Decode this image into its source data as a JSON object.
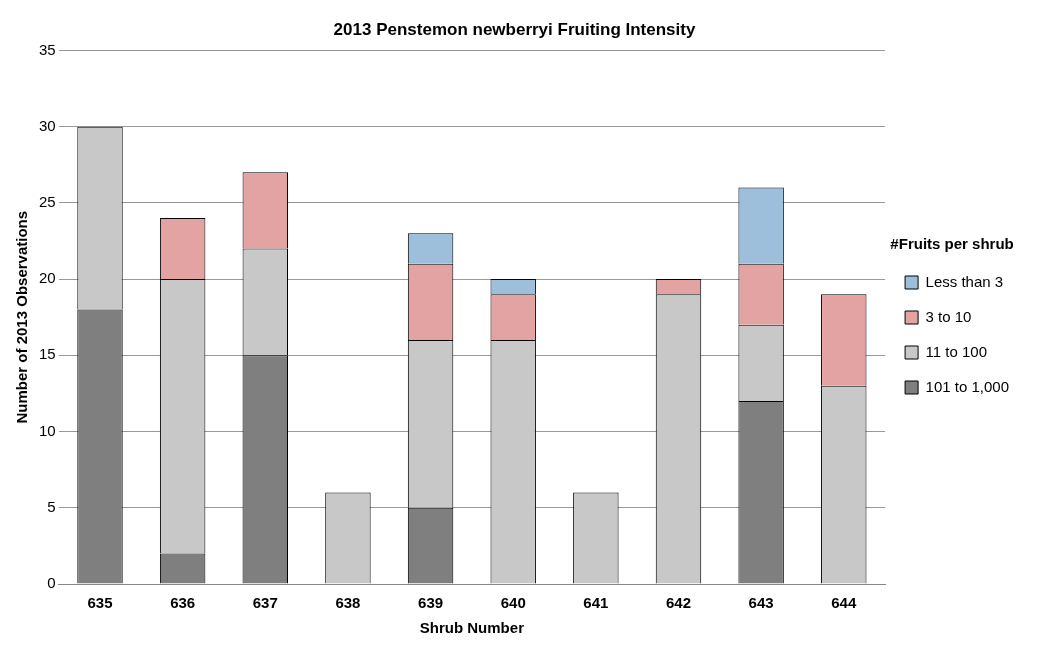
{
  "chart_data": {
    "type": "bar",
    "title": "2013 Penstemon newberryi Fruiting Intensity",
    "xlabel": "Shrub Number",
    "ylabel": "Number of 2013 Observations",
    "legend_title": "#Fruits per shrub",
    "categories": [
      "635",
      "636",
      "637",
      "638",
      "639",
      "640",
      "641",
      "642",
      "643",
      "644"
    ],
    "series": [
      {
        "name": "101 to 1,000",
        "color": "#7f7f7f",
        "values": [
          18,
          2,
          15,
          0,
          5,
          0,
          0,
          0,
          12,
          0
        ]
      },
      {
        "name": "11 to 100",
        "color": "#c8c8c8",
        "values": [
          12,
          18,
          7,
          6,
          11,
          16,
          6,
          19,
          5,
          13
        ]
      },
      {
        "name": "3 to 10",
        "color": "#e3a3a3",
        "values": [
          0,
          4,
          5,
          0,
          5,
          3,
          0,
          1,
          4,
          6
        ]
      },
      {
        "name": "Less than 3",
        "color": "#9dbfdc",
        "values": [
          0,
          0,
          0,
          0,
          2,
          1,
          0,
          0,
          5,
          0
        ]
      }
    ],
    "stacked": true,
    "ylim": [
      0,
      35
    ],
    "yticks": [
      0,
      5,
      10,
      15,
      20,
      25,
      30,
      35
    ],
    "grid": "y",
    "legend": "right"
  }
}
